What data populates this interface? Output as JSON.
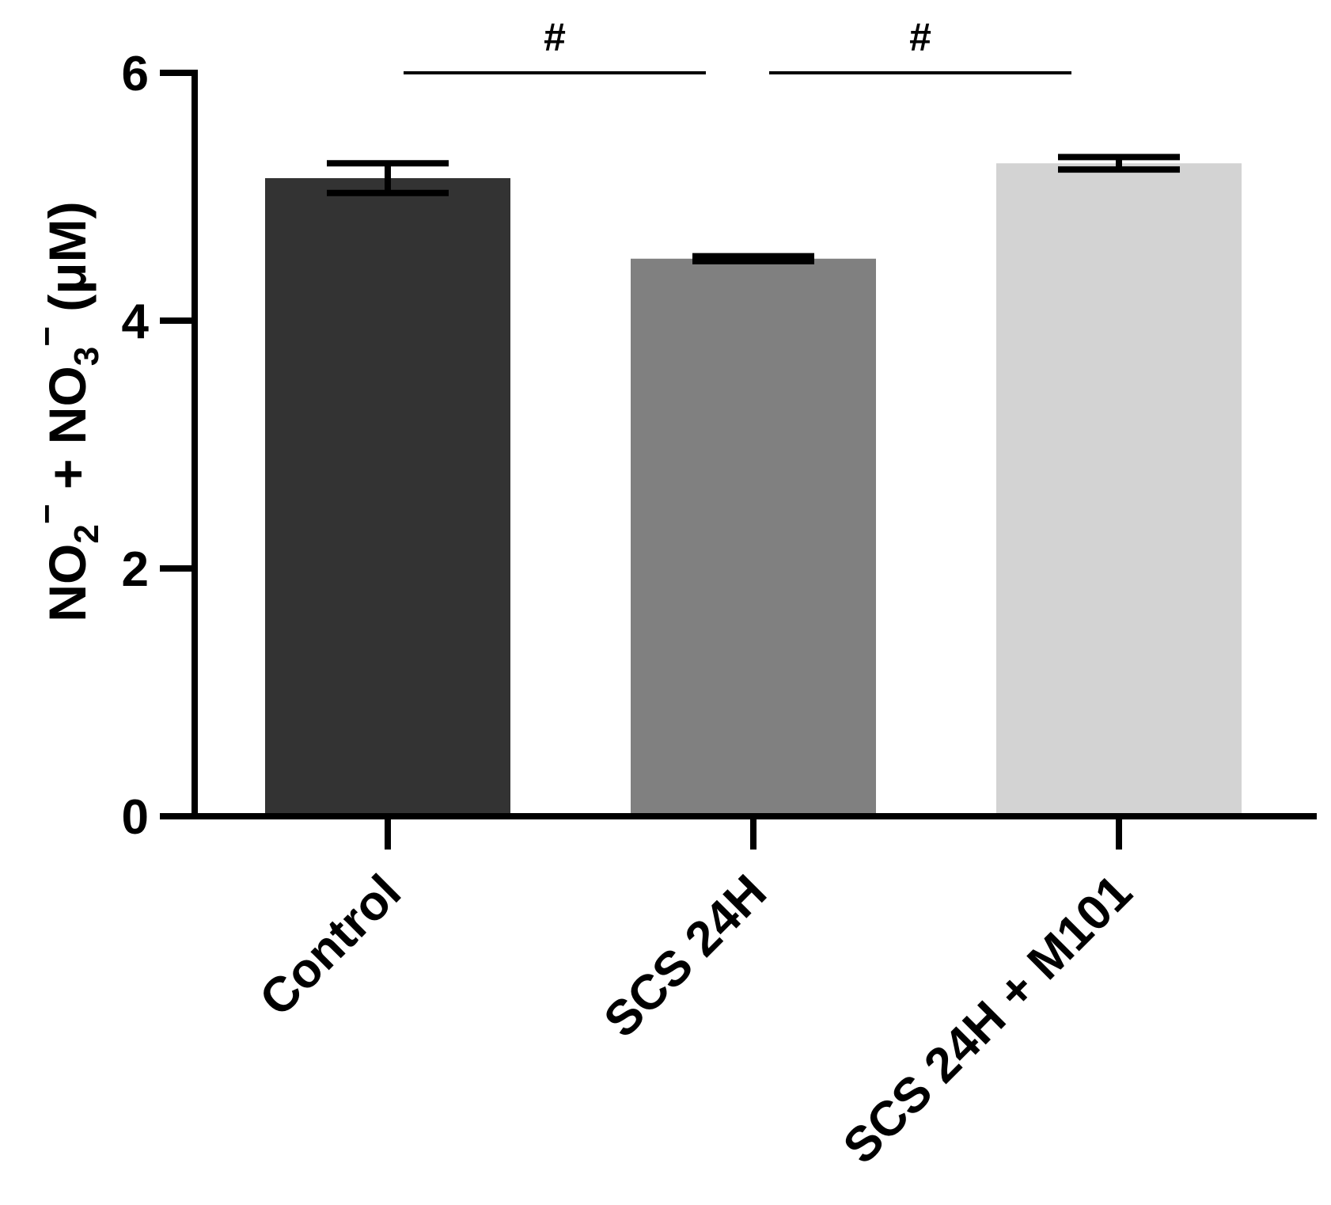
{
  "chart_data": {
    "type": "bar",
    "categories": [
      "Control",
      "SCS 24H",
      "SCS 24H + M101"
    ],
    "values": [
      5.15,
      4.5,
      5.27
    ],
    "errors": [
      0.12,
      0.02,
      0.05
    ],
    "bar_colors": [
      "#333333",
      "#808080",
      "#d3d3d3"
    ],
    "ylim": [
      0,
      6
    ],
    "yticks": [
      0,
      2,
      4,
      6
    ],
    "ytick_labels": [
      "0",
      "2",
      "4",
      "6"
    ],
    "ylabel": {
      "part1": "NO",
      "sub1": "2",
      "sup1": "−",
      "part2": " + NO",
      "sub2": "3",
      "sup2": "−",
      "part3": " (μM)"
    },
    "xlabel": "",
    "grid": false,
    "significance": [
      {
        "from": 0,
        "to": 1,
        "label": "#",
        "y": 6.0
      },
      {
        "from": 1,
        "to": 2,
        "label": "#",
        "y": 6.0
      }
    ]
  }
}
